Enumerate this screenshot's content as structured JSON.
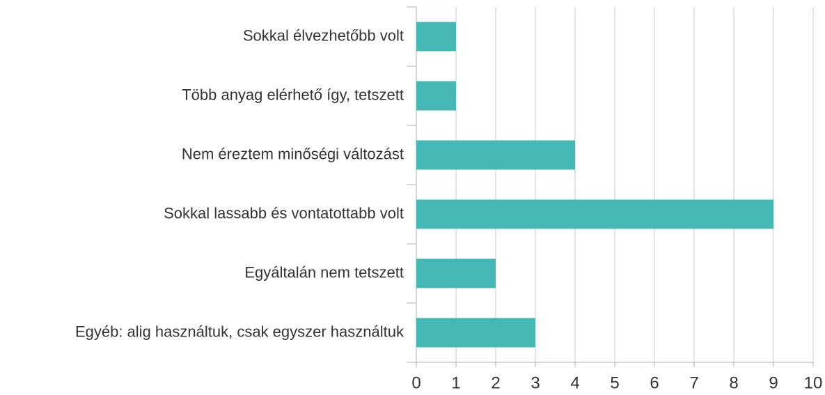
{
  "chart_data": {
    "type": "barh",
    "categories": [
      "Sokkal élvezhetőbb volt",
      "Több anyag elérhető így, tetszett",
      "Nem éreztem minőségi változást",
      "Sokkal lassabb és vontatottabb volt",
      "Egyáltalán nem tetszett",
      "Egyéb: alig használtuk, csak egyszer használtuk"
    ],
    "values": [
      1,
      1,
      4,
      9,
      2,
      3
    ],
    "color": "#45b8b5",
    "xlim": [
      0,
      10
    ],
    "xticks": [
      0,
      1,
      2,
      3,
      4,
      5,
      6,
      7,
      8,
      9,
      10
    ],
    "grid": true
  }
}
